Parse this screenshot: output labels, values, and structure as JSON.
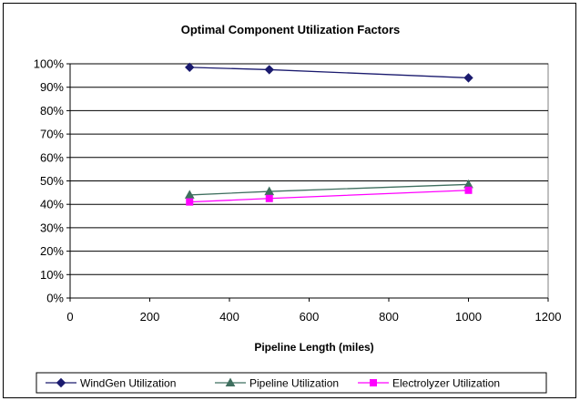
{
  "chart_data": {
    "type": "line",
    "title": "Optimal Component Utilization Factors",
    "xlabel": "Pipeline Length (miles)",
    "ylabel": "",
    "xlim": [
      0,
      1200
    ],
    "ylim": [
      0,
      100
    ],
    "x_ticks": [
      "0",
      "200",
      "400",
      "600",
      "800",
      "1000",
      "1200"
    ],
    "y_ticks": [
      "0%",
      "10%",
      "20%",
      "30%",
      "40%",
      "50%",
      "60%",
      "70%",
      "80%",
      "90%",
      "100%"
    ],
    "x_tick_values": [
      0,
      200,
      400,
      600,
      800,
      1000,
      1200
    ],
    "y_tick_values": [
      0,
      10,
      20,
      30,
      40,
      50,
      60,
      70,
      80,
      90,
      100
    ],
    "grid": "horizontal",
    "legend_position": "bottom",
    "x": [
      300,
      500,
      1000
    ],
    "series": [
      {
        "name": "WindGen Utilization",
        "values": [
          98.5,
          97.5,
          94
        ],
        "color": "#1a1a6e",
        "marker": "diamond"
      },
      {
        "name": "Pipeline Utilization",
        "values": [
          44,
          45.5,
          48.5
        ],
        "color": "#3f6f5f",
        "marker": "triangle"
      },
      {
        "name": "Electrolyzer Utilization",
        "values": [
          41,
          42.5,
          46
        ],
        "color": "#ff00ff",
        "marker": "square"
      }
    ]
  }
}
